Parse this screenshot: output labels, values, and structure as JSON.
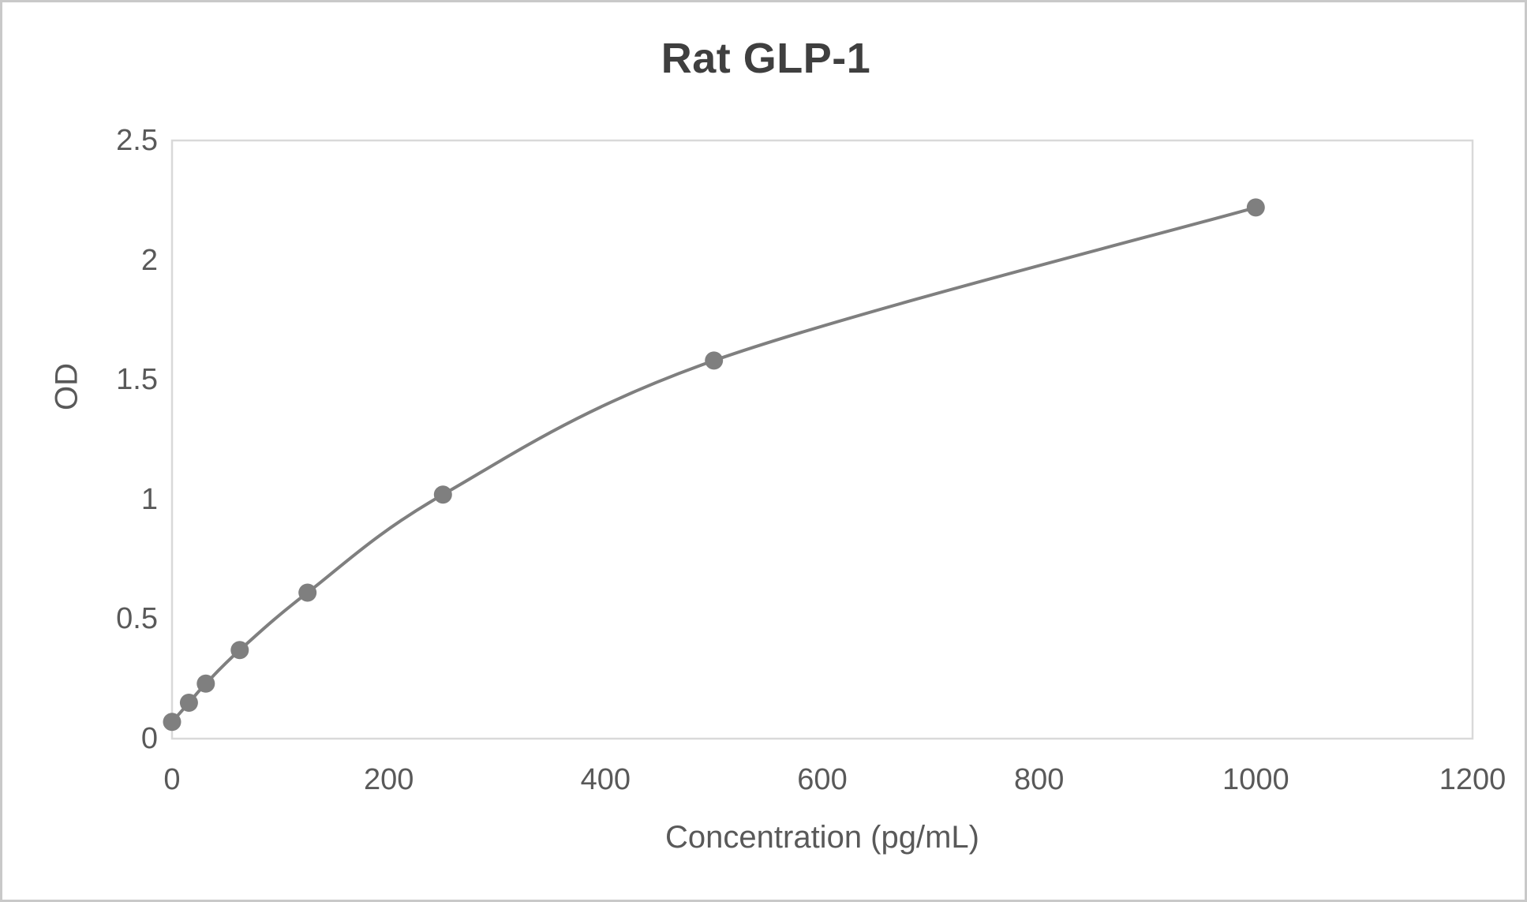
{
  "chart_data": {
    "type": "line",
    "title": "Rat GLP-1",
    "xlabel": "Concentration (pg/mL)",
    "ylabel": "OD",
    "x": [
      0,
      15.6,
      31.2,
      62.5,
      125,
      250,
      500,
      1000
    ],
    "y": [
      0.07,
      0.15,
      0.23,
      0.37,
      0.61,
      1.02,
      1.58,
      2.22
    ],
    "xlim": [
      0,
      1200
    ],
    "ylim": [
      0,
      2.5
    ],
    "x_ticks": [
      0,
      200,
      400,
      600,
      800,
      1000,
      1200
    ],
    "x_tick_labels": [
      "0",
      "200",
      "400",
      "600",
      "800",
      "1000",
      "1200"
    ],
    "y_ticks": [
      0,
      0.5,
      1,
      1.5,
      2,
      2.5
    ],
    "y_tick_labels": [
      "0",
      "0.5",
      "1",
      "1.5",
      "2",
      "2.5"
    ],
    "grid": false,
    "legend": false,
    "marker": "circle",
    "line_style": "smooth",
    "colors": {
      "series": "#7f7f7f",
      "plot_border": "#d9d9d9",
      "tick_text": "#595959",
      "title_text": "#3f3f3f",
      "outer_border": "#c9c9c9"
    }
  }
}
